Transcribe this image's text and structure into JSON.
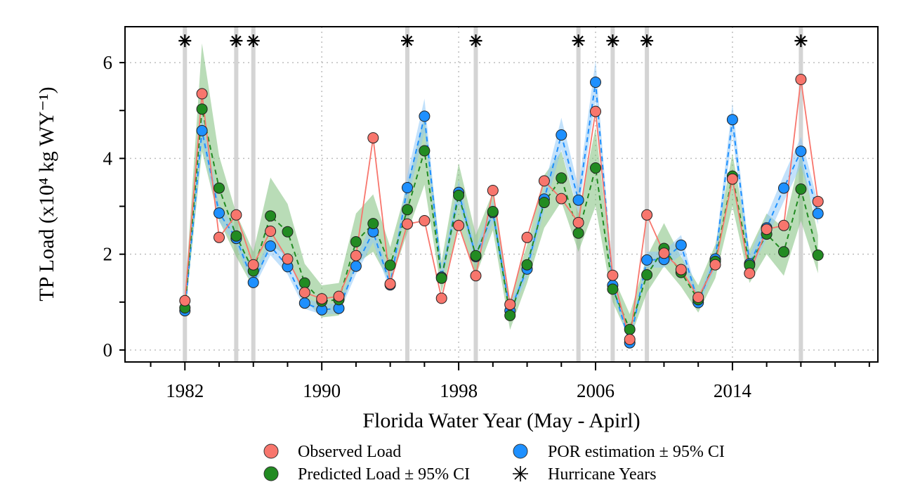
{
  "chart_data": {
    "type": "line",
    "xlabel": "Florida Water Year (May - Apirl)",
    "ylabel": "TP Load (x10⁴ kg WY⁻¹)",
    "xlim": [
      1978.5,
      2022.5
    ],
    "ylim": [
      -0.25,
      6.75
    ],
    "x_ticks": [
      1982,
      1990,
      1998,
      2006,
      2014
    ],
    "y_ticks": [
      0,
      2,
      4,
      6
    ],
    "grid": true,
    "legend_placement": "bottom",
    "x": [
      1982,
      1983,
      1984,
      1985,
      1986,
      1987,
      1988,
      1989,
      1990,
      1991,
      1992,
      1993,
      1994,
      1995,
      1996,
      1997,
      1998,
      1999,
      2000,
      2001,
      2002,
      2003,
      2004,
      2005,
      2006,
      2007,
      2008,
      2009,
      2010,
      2011,
      2012,
      2013,
      2014,
      2015,
      2016,
      2017,
      2018,
      2019
    ],
    "series": [
      {
        "name": "Observed Load",
        "color": "#f8766d",
        "values": [
          1.03,
          5.35,
          2.35,
          2.82,
          1.78,
          2.48,
          1.9,
          1.2,
          1.07,
          1.12,
          1.97,
          4.43,
          1.38,
          2.63,
          2.7,
          1.08,
          2.6,
          1.55,
          3.33,
          0.95,
          2.35,
          3.53,
          3.16,
          2.66,
          4.98,
          1.56,
          0.22,
          2.82,
          2.02,
          1.68,
          1.1,
          1.78,
          3.57,
          1.6,
          2.52,
          2.6,
          5.65,
          3.1
        ]
      },
      {
        "name": "Predicted Load ± 95% CI",
        "color": "#228b22",
        "band_color": "#7fbf7b",
        "values": [
          0.88,
          5.03,
          3.38,
          2.38,
          1.65,
          2.8,
          2.47,
          1.4,
          1.02,
          1.05,
          2.26,
          2.64,
          1.77,
          2.93,
          4.16,
          1.5,
          3.23,
          1.97,
          2.89,
          0.72,
          1.78,
          3.08,
          3.59,
          2.44,
          3.8,
          1.27,
          0.43,
          1.57,
          2.12,
          1.62,
          1.05,
          1.85,
          3.63,
          1.77,
          2.42,
          2.05,
          3.36,
          1.98
        ],
        "lower": [
          0.7,
          4.15,
          2.7,
          1.95,
          1.3,
          2.2,
          1.95,
          1.05,
          0.68,
          0.72,
          1.8,
          2.05,
          1.4,
          2.45,
          3.45,
          1.2,
          2.6,
          1.55,
          2.5,
          0.42,
          1.4,
          2.55,
          3.1,
          2.05,
          3.0,
          1.0,
          0.22,
          1.2,
          1.75,
          1.32,
          0.78,
          1.5,
          3.0,
          1.4,
          2.0,
          1.55,
          2.7,
          1.6
        ],
        "upper": [
          1.1,
          6.4,
          4.05,
          2.85,
          2.05,
          3.6,
          3.05,
          1.8,
          1.35,
          1.4,
          2.85,
          3.25,
          2.15,
          3.45,
          4.9,
          1.85,
          3.9,
          2.4,
          3.3,
          1.05,
          2.2,
          3.65,
          4.15,
          2.85,
          4.65,
          1.55,
          0.75,
          1.95,
          2.65,
          1.95,
          1.35,
          2.2,
          4.1,
          2.1,
          2.85,
          2.55,
          4.1,
          2.4
        ]
      },
      {
        "name": "POR estimation ± 95% CI",
        "color": "#1e90ff",
        "band_color": "#90c8f8",
        "values": [
          0.82,
          4.58,
          2.86,
          2.33,
          1.41,
          2.17,
          1.74,
          0.98,
          0.84,
          0.87,
          1.75,
          2.47,
          1.36,
          3.39,
          4.88,
          1.52,
          3.29,
          1.95,
          2.87,
          0.82,
          1.69,
          3.15,
          4.49,
          3.13,
          5.59,
          1.35,
          0.15,
          1.88,
          1.89,
          2.19,
          0.99,
          1.9,
          4.81,
          1.8,
          2.55,
          3.38,
          4.15,
          2.85
        ],
        "lower": [
          0.7,
          4.35,
          2.68,
          2.18,
          1.28,
          1.98,
          1.58,
          0.86,
          0.74,
          0.76,
          1.58,
          2.25,
          1.22,
          3.12,
          4.55,
          1.38,
          3.05,
          1.78,
          2.65,
          0.7,
          1.52,
          2.92,
          4.18,
          2.88,
          5.2,
          1.22,
          0.08,
          1.72,
          1.72,
          1.98,
          0.88,
          1.72,
          4.5,
          1.62,
          2.32,
          3.1,
          3.85,
          2.62
        ],
        "upper": [
          0.95,
          4.85,
          3.05,
          2.5,
          1.55,
          2.38,
          1.92,
          1.1,
          0.95,
          0.98,
          1.92,
          2.7,
          1.5,
          3.65,
          5.25,
          1.68,
          3.55,
          2.12,
          3.1,
          0.95,
          1.86,
          3.4,
          4.85,
          3.4,
          6.05,
          1.48,
          0.22,
          2.05,
          2.06,
          2.4,
          1.1,
          2.08,
          5.15,
          1.98,
          2.8,
          3.65,
          4.45,
          3.08
        ]
      }
    ],
    "hurricane_years": {
      "name": "Hurricane Years",
      "years": [
        1982,
        1985,
        1986,
        1995,
        1999,
        2005,
        2007,
        2009,
        2018
      ]
    }
  }
}
